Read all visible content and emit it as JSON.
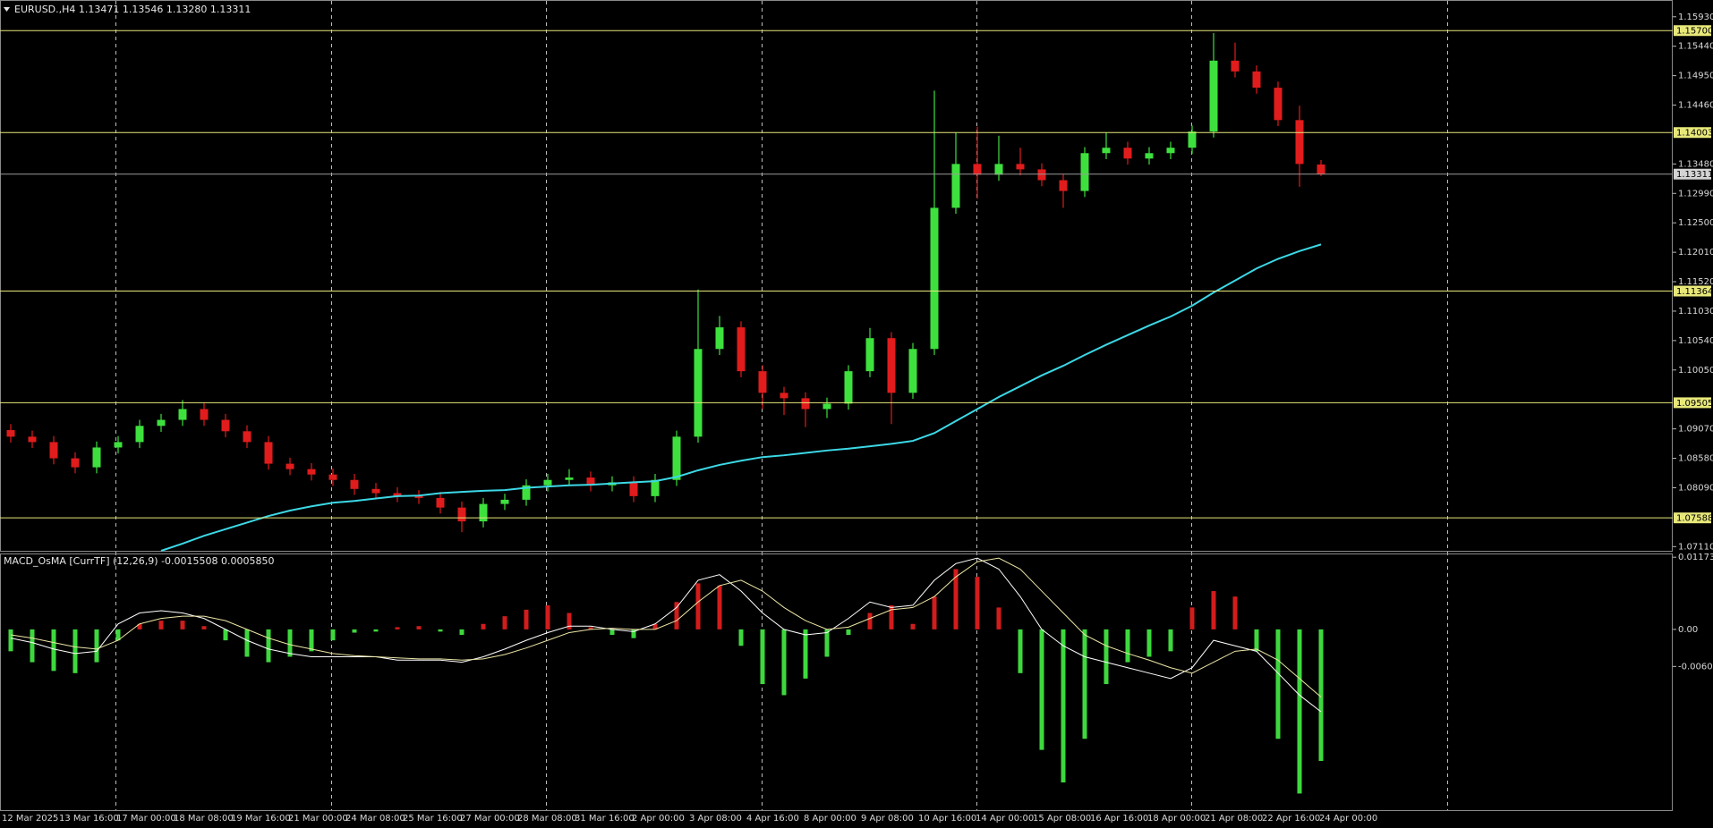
{
  "chart_data": [
    {
      "type": "candlestick",
      "title": "EURUSD.,H4  1.13471 1.13546 1.13280 1.13311",
      "up_color": "#3ee03e",
      "down_color": "#e01c1c",
      "open": [
        1.0905,
        1.0894,
        1.0885,
        1.0858,
        1.0843,
        1.0876,
        1.0885,
        1.0912,
        1.0922,
        1.094,
        1.0922,
        1.0903,
        1.0885,
        1.0849,
        1.084,
        1.0831,
        1.0822,
        1.0807,
        1.08,
        1.0795,
        1.0792,
        1.0776,
        1.0753,
        1.0782,
        1.0789,
        1.0813,
        1.0822,
        1.0826,
        1.0813,
        1.0818,
        1.0795,
        1.0822,
        1.0894,
        1.104,
        1.1076,
        1.1003,
        1.0967,
        1.0958,
        1.094,
        1.0949,
        1.1003,
        1.1058,
        1.0967,
        1.104,
        1.1275,
        1.1348,
        1.133,
        1.1348,
        1.1339,
        1.1321,
        1.1303,
        1.1366,
        1.1375,
        1.1357,
        1.1366,
        1.1375,
        1.1402,
        1.152,
        1.1502,
        1.1475,
        1.1421,
        1.13471
      ],
      "high": [
        1.0915,
        1.0904,
        1.0895,
        1.0868,
        1.0886,
        1.0895,
        1.0922,
        1.0932,
        1.0955,
        1.095,
        1.0932,
        1.0913,
        1.0895,
        1.0859,
        1.085,
        1.0841,
        1.0832,
        1.0817,
        1.081,
        1.0805,
        1.0802,
        1.0786,
        1.0792,
        1.0799,
        1.0823,
        1.0832,
        1.084,
        1.0836,
        1.0828,
        1.0828,
        1.0832,
        1.0904,
        1.1139,
        1.1095,
        1.1086,
        1.1013,
        1.0977,
        1.0968,
        1.0959,
        1.1013,
        1.1075,
        1.1068,
        1.105,
        1.147,
        1.14,
        1.141,
        1.1395,
        1.1375,
        1.1349,
        1.1331,
        1.1376,
        1.14,
        1.1385,
        1.1376,
        1.1385,
        1.1412,
        1.1566,
        1.155,
        1.1512,
        1.1485,
        1.1445,
        1.13546
      ],
      "low": [
        1.0884,
        1.0875,
        1.0848,
        1.0833,
        1.0833,
        1.0866,
        1.0875,
        1.0902,
        1.0912,
        1.0912,
        1.0893,
        1.0875,
        1.0839,
        1.083,
        1.0821,
        1.0812,
        1.0797,
        1.079,
        1.0785,
        1.0782,
        1.0766,
        1.0735,
        1.0743,
        1.0772,
        1.0779,
        1.0803,
        1.0812,
        1.0803,
        1.0803,
        1.0785,
        1.0785,
        1.0812,
        1.0884,
        1.103,
        1.0993,
        1.094,
        1.093,
        1.091,
        1.0925,
        1.0939,
        1.0993,
        1.0915,
        1.0957,
        1.103,
        1.1265,
        1.129,
        1.132,
        1.1329,
        1.1311,
        1.1275,
        1.1293,
        1.1356,
        1.1347,
        1.1347,
        1.1356,
        1.1365,
        1.1392,
        1.1492,
        1.1465,
        1.1411,
        1.131,
        1.1328
      ],
      "close": [
        1.0894,
        1.0885,
        1.0858,
        1.0843,
        1.0876,
        1.0885,
        1.0912,
        1.0922,
        1.094,
        1.0922,
        1.0903,
        1.0885,
        1.0849,
        1.084,
        1.0831,
        1.0822,
        1.0807,
        1.08,
        1.0795,
        1.0792,
        1.0776,
        1.0753,
        1.0782,
        1.0789,
        1.0813,
        1.0822,
        1.0826,
        1.0813,
        1.0818,
        1.0795,
        1.0822,
        1.0894,
        1.104,
        1.1076,
        1.1003,
        1.0967,
        1.0958,
        1.094,
        1.0949,
        1.1003,
        1.1058,
        1.0967,
        1.104,
        1.1275,
        1.1348,
        1.133,
        1.1348,
        1.1339,
        1.1321,
        1.1303,
        1.1366,
        1.1375,
        1.1357,
        1.1366,
        1.1375,
        1.1402,
        1.152,
        1.1502,
        1.1475,
        1.1421,
        1.1348,
        1.13311
      ],
      "series": [
        {
          "color": "#3cd8e6",
          "values": [
            null,
            null,
            null,
            null,
            null,
            null,
            null,
            1.0704,
            1.0716,
            1.0729,
            1.074,
            1.0751,
            1.0762,
            1.0771,
            1.0778,
            1.0784,
            1.0787,
            1.0791,
            1.0795,
            1.0796,
            1.08,
            1.0802,
            1.0804,
            1.0805,
            1.0809,
            1.0811,
            1.0813,
            1.0814,
            1.0816,
            1.0818,
            1.082,
            1.0827,
            1.0838,
            1.0847,
            1.0854,
            1.086,
            1.0863,
            1.0867,
            1.0871,
            1.0874,
            1.0878,
            1.0882,
            1.0887,
            1.09,
            1.092,
            1.094,
            1.096,
            1.0978,
            1.0996,
            1.1012,
            1.103,
            1.1047,
            1.1063,
            1.1079,
            1.1094,
            1.1112,
            1.1134,
            1.1154,
            1.1174,
            1.119,
            1.1203,
            1.1214
          ]
        }
      ],
      "levels": [
        {
          "value": 1.157,
          "label": "1.15700"
        },
        1.14003,
        1.11364,
        1.09505,
        1.07588
      ],
      "level_color": "#e8e87a",
      "current_price": 1.13311,
      "current_price_color": "#9a9a9a",
      "ylim": [
        1.0704,
        1.1615
      ],
      "yticks": [
        {
          "value": 1.1593,
          "label": "1.15930"
        },
        {
          "value": 1.1544,
          "label": "1.15440"
        },
        {
          "value": 1.1495,
          "label": "1.14950"
        },
        {
          "value": 1.1446,
          "label": "1.14460"
        },
        {
          "value": 1.1348,
          "label": "1.13480"
        },
        {
          "value": 1.1299,
          "label": "1.12990"
        },
        {
          "value": 1.125,
          "label": "1.12500"
        },
        {
          "value": 1.1201,
          "label": "1.12010"
        },
        {
          "value": 1.1152,
          "label": "1.11520"
        },
        {
          "value": 1.1103,
          "label": "1.11030"
        },
        {
          "value": 1.1054,
          "label": "1.10540"
        },
        {
          "value": 1.1005,
          "label": "1.10050"
        },
        {
          "value": 1.0907,
          "label": "1.09070"
        },
        {
          "value": 1.0858,
          "label": "1.08580"
        },
        {
          "value": 1.0809,
          "label": "1.08090"
        },
        {
          "value": 1.0711,
          "label": "1.07110"
        }
      ],
      "grid": false
    },
    {
      "type": "macd",
      "title": "MACD_OsMA [CurrTF] (12,26,9) -0.0015508 0.0005850",
      "up_color": "#d21c1c",
      "down_color": "#3ed83e",
      "values": [
        -0.00356,
        -0.00534,
        -0.00676,
        -0.00712,
        -0.00534,
        -0.00178,
        0.00089,
        0.00142,
        0.00142,
        0.00053,
        -0.00178,
        -0.00445,
        -0.00534,
        -0.00445,
        -0.00356,
        -0.00178,
        -0.00053,
        -0.00036,
        0.00036,
        0.00053,
        -0.00036,
        -0.00089,
        0.00089,
        0.00214,
        0.0032,
        0.00392,
        0.00267,
        0.00036,
        -0.00089,
        -0.00142,
        0.00089,
        0.00445,
        0.00748,
        0.00712,
        -0.00267,
        -0.0089,
        -0.0107,
        -0.008,
        -0.00445,
        -0.00089,
        0.00267,
        0.00392,
        0.00089,
        0.00534,
        0.0098,
        0.00854,
        0.00356,
        -0.00712,
        -0.0196,
        -0.0249,
        -0.0178,
        -0.0089,
        -0.00534,
        -0.00445,
        -0.00356,
        0.00356,
        0.00623,
        0.00534,
        -0.00356,
        -0.0178,
        -0.0267,
        -0.0214
      ],
      "series": [
        {
          "color": "#ffffff",
          "values": [
            -0.00142,
            -0.00214,
            -0.0032,
            -0.00392,
            -0.00356,
            0.00089,
            0.00267,
            0.00303,
            0.00267,
            0.00178,
            0,
            -0.00178,
            -0.0032,
            -0.00392,
            -0.00445,
            -0.00445,
            -0.00445,
            -0.00445,
            -0.005,
            -0.005,
            -0.005,
            -0.00534,
            -0.00445,
            -0.0032,
            -0.00178,
            -0.00053,
            0.00053,
            0.00053,
            0,
            -0.00036,
            0.00089,
            0.00356,
            0.008,
            0.0089,
            0.00623,
            0.00267,
            0,
            -0.00089,
            -0.00053,
            0.00178,
            0.00445,
            0.00356,
            0.00392,
            0.008,
            0.0107,
            0.0116,
            0.0098,
            0.00534,
            0,
            -0.00267,
            -0.00445,
            -0.00534,
            -0.00623,
            -0.00712,
            -0.008,
            -0.00623,
            -0.00178,
            -0.00267,
            -0.00356,
            -0.00712,
            -0.0107,
            -0.0134
          ]
        },
        {
          "color": "#ece6a6",
          "values": [
            -0.00089,
            -0.00142,
            -0.00214,
            -0.00285,
            -0.0032,
            -0.00178,
            0.00089,
            0.00178,
            0.00214,
            0.00214,
            0.00142,
            0,
            -0.00142,
            -0.00249,
            -0.0032,
            -0.00392,
            -0.00427,
            -0.00445,
            -0.00463,
            -0.0048,
            -0.0048,
            -0.005,
            -0.0048,
            -0.00409,
            -0.00303,
            -0.00178,
            -0.00053,
            0,
            0.00018,
            0,
            0,
            0.00142,
            0.00445,
            0.00712,
            0.008,
            0.00623,
            0.00356,
            0.00142,
            0,
            0.00036,
            0.00178,
            0.0032,
            0.00356,
            0.00534,
            0.00854,
            0.011,
            0.0116,
            0.0098,
            0.00623,
            0.00267,
            -0.00089,
            -0.00267,
            -0.00392,
            -0.005,
            -0.00623,
            -0.00712,
            -0.00534,
            -0.00356,
            -0.0032,
            -0.005,
            -0.008,
            -0.011
          ]
        }
      ],
      "ylim": [
        -0.0294,
        0.0122
      ],
      "yticks": [
        0.0117387,
        {
          "value": 0,
          "label": "0.00"
        },
        {
          "value": -0.00603,
          "label": "-0.006030"
        }
      ],
      "time_labels": [
        "12 Mar 2025",
        "13 Mar 16:00",
        "17 Mar 00:00",
        "18 Mar 08:00",
        "19 Mar 16:00",
        "21 Mar 00:00",
        "24 Mar 08:00",
        "25 Mar 16:00",
        "27 Mar 00:00",
        "28 Mar 08:00",
        "31 Mar 16:00",
        "2 Apr 00:00",
        "3 Apr 08:00",
        "4 Apr 16:00",
        "8 Apr 00:00",
        "9 Apr 08:00",
        "10 Apr 16:00",
        "14 Apr 00:00",
        "15 Apr 08:00",
        "16 Apr 16:00",
        "18 Apr 00:00",
        "21 Apr 08:00",
        "22 Apr 16:00",
        "24 Apr 00:00"
      ]
    }
  ]
}
